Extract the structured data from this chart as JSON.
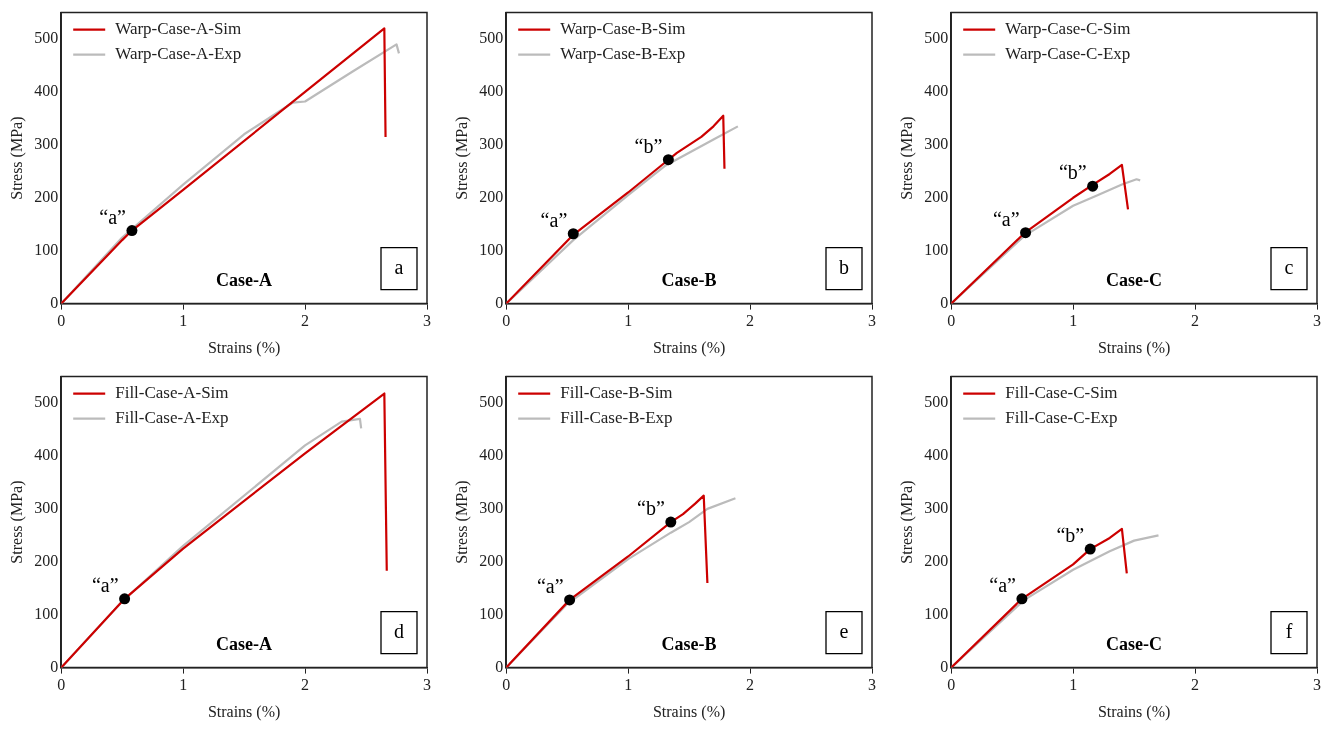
{
  "chart_data": [
    {
      "type": "line",
      "xlabel": "Strains (%)",
      "ylabel": "Stress (MPa)",
      "xlim": [
        0,
        3
      ],
      "xticks": [
        0,
        1,
        2,
        3
      ],
      "ylim": [
        0,
        550
      ],
      "yticks": [
        0,
        100,
        200,
        300,
        400,
        500
      ],
      "grid": false,
      "legend": "top left",
      "line_style": "solid",
      "annotations": [
        "Case-A",
        "a",
        {
          "text": "“a”",
          "x": 0.58,
          "y": 138
        }
      ],
      "series": [
        {
          "name": "Warp-Case-A-Sim",
          "color": "#cc0000",
          "marker": "none",
          "x": [
            0,
            0.5,
            0.58,
            1,
            2,
            2.65,
            2.66
          ],
          "values": [
            0,
            120,
            138,
            215,
            400,
            520,
            315
          ]
        },
        {
          "name": "Warp-Case-A-Exp",
          "color": "#bbbbbb",
          "marker": "none",
          "x": [
            0,
            0.5,
            1,
            1.5,
            1.9,
            2,
            2.4,
            2.75,
            2.77
          ],
          "values": [
            0,
            125,
            225,
            320,
            380,
            382,
            440,
            490,
            473
          ]
        },
        {
          "type": "scatter",
          "color": "#000000",
          "marker": "circle",
          "x": [
            0.58
          ],
          "values": [
            138
          ]
        }
      ]
    },
    {
      "type": "line",
      "xlabel": "Strains (%)",
      "ylabel": "Stress (MPa)",
      "xlim": [
        0,
        3
      ],
      "xticks": [
        0,
        1,
        2,
        3
      ],
      "ylim": [
        0,
        550
      ],
      "yticks": [
        0,
        100,
        200,
        300,
        400,
        500
      ],
      "grid": false,
      "legend": "top left",
      "line_style": "solid",
      "annotations": [
        "Case-B",
        "b",
        {
          "text": "“a”",
          "x": 0.55,
          "y": 132
        },
        {
          "text": "“b”",
          "x": 1.33,
          "y": 272
        }
      ],
      "series": [
        {
          "name": "Warp-Case-B-Sim",
          "color": "#cc0000",
          "marker": "none",
          "x": [
            0,
            0.55,
            1,
            1.32,
            1.4,
            1.5,
            1.6,
            1.7,
            1.78,
            1.79
          ],
          "values": [
            0,
            130,
            210,
            270,
            285,
            300,
            315,
            335,
            355,
            255
          ]
        },
        {
          "name": "Warp-Case-B-Exp",
          "color": "#bbbbbb",
          "marker": "none",
          "x": [
            0,
            0.55,
            1,
            1.3,
            1.5,
            1.7,
            1.9
          ],
          "values": [
            0,
            120,
            205,
            260,
            285,
            310,
            335
          ]
        },
        {
          "type": "scatter",
          "color": "#000000",
          "marker": "circle",
          "x": [
            0.55,
            1.33
          ],
          "values": [
            132,
            272
          ]
        }
      ]
    },
    {
      "type": "line",
      "xlabel": "Strains (%)",
      "ylabel": "Stress (MPa)",
      "xlim": [
        0,
        3
      ],
      "xticks": [
        0,
        1,
        2,
        3
      ],
      "ylim": [
        0,
        550
      ],
      "yticks": [
        0,
        100,
        200,
        300,
        400,
        500
      ],
      "grid": false,
      "legend": "top left",
      "line_style": "solid",
      "annotations": [
        "Case-C",
        "c",
        {
          "text": "“a”",
          "x": 0.61,
          "y": 134
        },
        {
          "text": "“b”",
          "x": 1.16,
          "y": 222
        }
      ],
      "series": [
        {
          "name": "Warp-Case-C-Sim",
          "color": "#cc0000",
          "marker": "none",
          "x": [
            0,
            0.6,
            1,
            1.15,
            1.3,
            1.4,
            1.45
          ],
          "values": [
            0,
            133,
            200,
            223,
            245,
            262,
            178
          ]
        },
        {
          "name": "Warp-Case-C-Exp",
          "color": "#bbbbbb",
          "marker": "none",
          "x": [
            0,
            0.6,
            1,
            1.2,
            1.4,
            1.52,
            1.55
          ],
          "values": [
            0,
            128,
            185,
            205,
            225,
            235,
            233
          ]
        },
        {
          "type": "scatter",
          "color": "#000000",
          "marker": "circle",
          "x": [
            0.61,
            1.16
          ],
          "values": [
            134,
            222
          ]
        }
      ]
    },
    {
      "type": "line",
      "xlabel": "Strains (%)",
      "ylabel": "Stress (MPa)",
      "xlim": [
        0,
        3
      ],
      "xticks": [
        0,
        1,
        2,
        3
      ],
      "ylim": [
        0,
        550
      ],
      "yticks": [
        0,
        100,
        200,
        300,
        400,
        500
      ],
      "grid": false,
      "legend": "top left",
      "line_style": "solid",
      "annotations": [
        "Case-A",
        "d",
        {
          "text": "“a”",
          "x": 0.52,
          "y": 130
        }
      ],
      "series": [
        {
          "name": "Fill-Case-A-Sim",
          "color": "#cc0000",
          "marker": "none",
          "x": [
            0,
            0.52,
            1,
            2,
            2.65,
            2.67
          ],
          "values": [
            0,
            130,
            225,
            405,
            518,
            183
          ]
        },
        {
          "name": "Fill-Case-A-Exp",
          "color": "#bbbbbb",
          "marker": "none",
          "x": [
            0,
            0.5,
            1,
            2,
            2.3,
            2.45,
            2.46
          ],
          "values": [
            0,
            125,
            230,
            420,
            465,
            470,
            452
          ]
        },
        {
          "type": "scatter",
          "color": "#000000",
          "marker": "circle",
          "x": [
            0.52
          ],
          "values": [
            130
          ]
        }
      ]
    },
    {
      "type": "line",
      "xlabel": "Strains (%)",
      "ylabel": "Stress (MPa)",
      "xlim": [
        0,
        3
      ],
      "xticks": [
        0,
        1,
        2,
        3
      ],
      "ylim": [
        0,
        550
      ],
      "yticks": [
        0,
        100,
        200,
        300,
        400,
        500
      ],
      "grid": false,
      "legend": "top left",
      "line_style": "solid",
      "annotations": [
        "Case-B",
        "e",
        {
          "text": "“a”",
          "x": 0.52,
          "y": 128
        },
        {
          "text": "“b”",
          "x": 1.35,
          "y": 275
        }
      ],
      "series": [
        {
          "name": "Fill-Case-B-Sim",
          "color": "#cc0000",
          "marker": "none",
          "x": [
            0,
            0.52,
            1,
            1.35,
            1.45,
            1.55,
            1.62,
            1.65
          ],
          "values": [
            0,
            128,
            210,
            275,
            290,
            310,
            325,
            160
          ]
        },
        {
          "name": "Fill-Case-B-Exp",
          "color": "#bbbbbb",
          "marker": "none",
          "x": [
            0,
            0.5,
            1,
            1.35,
            1.5,
            1.65,
            1.88
          ],
          "values": [
            0,
            120,
            205,
            255,
            275,
            300,
            320
          ]
        },
        {
          "type": "scatter",
          "color": "#000000",
          "marker": "circle",
          "x": [
            0.52,
            1.35
          ],
          "values": [
            128,
            275
          ]
        }
      ]
    },
    {
      "type": "line",
      "xlabel": "Strains (%)",
      "ylabel": "Stress (MPa)",
      "xlim": [
        0,
        3
      ],
      "xticks": [
        0,
        1,
        2,
        3
      ],
      "ylim": [
        0,
        550
      ],
      "yticks": [
        0,
        100,
        200,
        300,
        400,
        500
      ],
      "grid": false,
      "legend": "top left",
      "line_style": "solid",
      "annotations": [
        "Case-C",
        "f",
        {
          "text": "“a”",
          "x": 0.58,
          "y": 130
        },
        {
          "text": "“b”",
          "x": 1.14,
          "y": 224
        }
      ],
      "series": [
        {
          "name": "Fill-Case-C-Sim",
          "color": "#cc0000",
          "marker": "none",
          "x": [
            0,
            0.58,
            1,
            1.14,
            1.3,
            1.4,
            1.44
          ],
          "values": [
            0,
            130,
            195,
            224,
            245,
            262,
            178
          ]
        },
        {
          "name": "Fill-Case-C-Exp",
          "color": "#bbbbbb",
          "marker": "none",
          "x": [
            0,
            0.6,
            1,
            1.3,
            1.5,
            1.7
          ],
          "values": [
            0,
            128,
            185,
            220,
            240,
            250
          ]
        },
        {
          "type": "scatter",
          "color": "#000000",
          "marker": "circle",
          "x": [
            0.58,
            1.14
          ],
          "values": [
            130,
            224
          ]
        }
      ]
    }
  ]
}
